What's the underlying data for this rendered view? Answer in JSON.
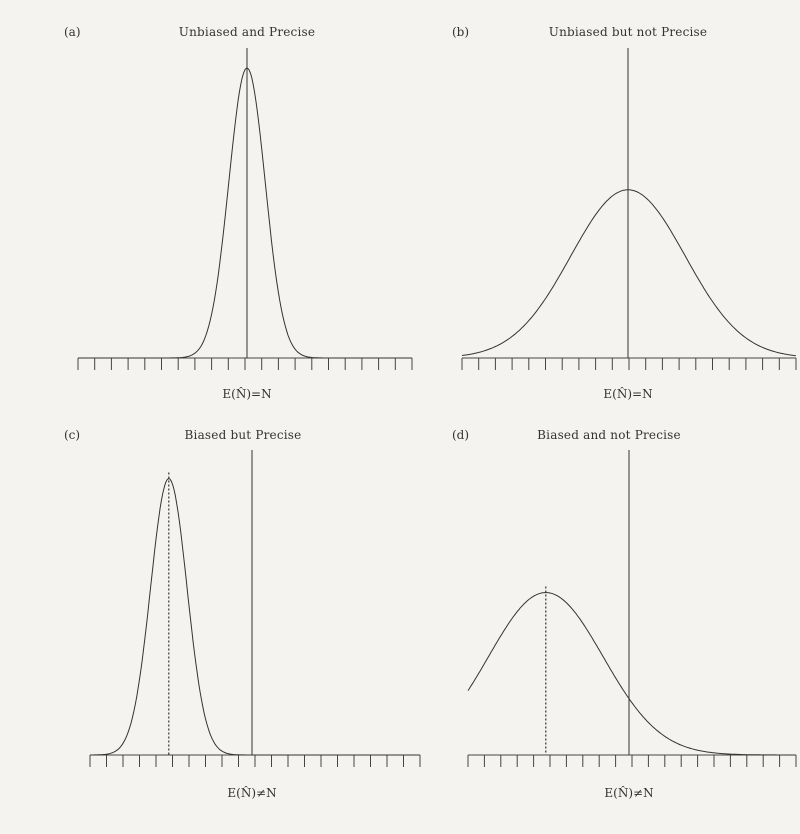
{
  "chart_data": [
    {
      "type": "line",
      "panel": "(a)",
      "title": "Unbiased and Precise",
      "xlabel": "E(N̂)=N",
      "ticks": 21,
      "true_value": 0,
      "mean": 0,
      "sd": 0.35,
      "peak_height": 1.0,
      "mean_line": "solid"
    },
    {
      "type": "line",
      "panel": "(b)",
      "title": "Unbiased but not Precise",
      "xlabel": "E(N̂)=N",
      "ticks": 21,
      "true_value": 0,
      "mean": 0,
      "sd": 1.1,
      "peak_height": 0.58,
      "mean_line": "solid"
    },
    {
      "type": "line",
      "panel": "(c)",
      "title": "Biased but Precise",
      "xlabel": "E(N̂)≠N",
      "ticks": 21,
      "true_value": 0,
      "mean": -1.6,
      "sd": 0.35,
      "peak_height": 0.97,
      "mean_line": "dotted"
    },
    {
      "type": "line",
      "panel": "(d)",
      "title": "Biased and not Precise",
      "xlabel": "E(N̂)≠N",
      "ticks": 21,
      "true_value": 0,
      "mean": -1.6,
      "sd": 1.1,
      "peak_height": 0.57,
      "mean_line": "dotted"
    }
  ]
}
